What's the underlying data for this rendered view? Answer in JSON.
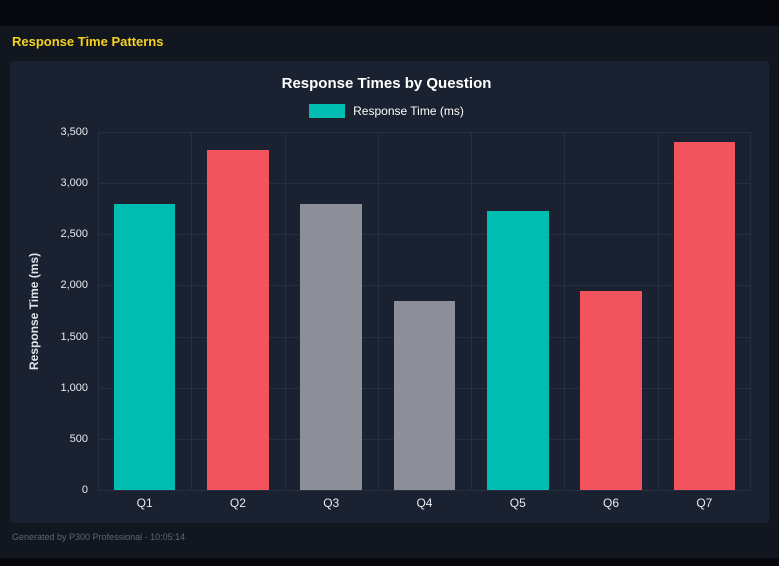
{
  "page": {
    "title": "Response Time Patterns",
    "footer": "Generated by P300 Professional - 10:05:14",
    "accent_yellow": "#f5d31d",
    "panel_background": "#1a2130",
    "page_background": "#12161f"
  },
  "chart_data": {
    "type": "bar",
    "title": "Response Times by Question",
    "legend": [
      {
        "label": "Response Time (ms)",
        "color": "#00bdb2"
      }
    ],
    "legend_position": "top",
    "categories": [
      "Q1",
      "Q2",
      "Q3",
      "Q4",
      "Q5",
      "Q6",
      "Q7"
    ],
    "values": [
      2800,
      3320,
      2800,
      1850,
      2730,
      1950,
      3400
    ],
    "bar_colors": [
      "#00bdb2",
      "#f2545f",
      "#8d8f98",
      "#8d8f98",
      "#00bdb2",
      "#f2545f",
      "#f2545f"
    ],
    "colors": {
      "teal": "#00bdb2",
      "red": "#f2545f",
      "gray": "#8d8f98"
    },
    "xlabel": "",
    "ylabel": "Response Time (ms)",
    "ylim": [
      0,
      3500
    ],
    "yticks": [
      0,
      500,
      1000,
      1500,
      2000,
      2500,
      3000,
      3500
    ],
    "ytick_labels": [
      "0",
      "500",
      "1,000",
      "1,500",
      "2,000",
      "2,500",
      "3,000",
      "3,500"
    ],
    "grid": true
  }
}
